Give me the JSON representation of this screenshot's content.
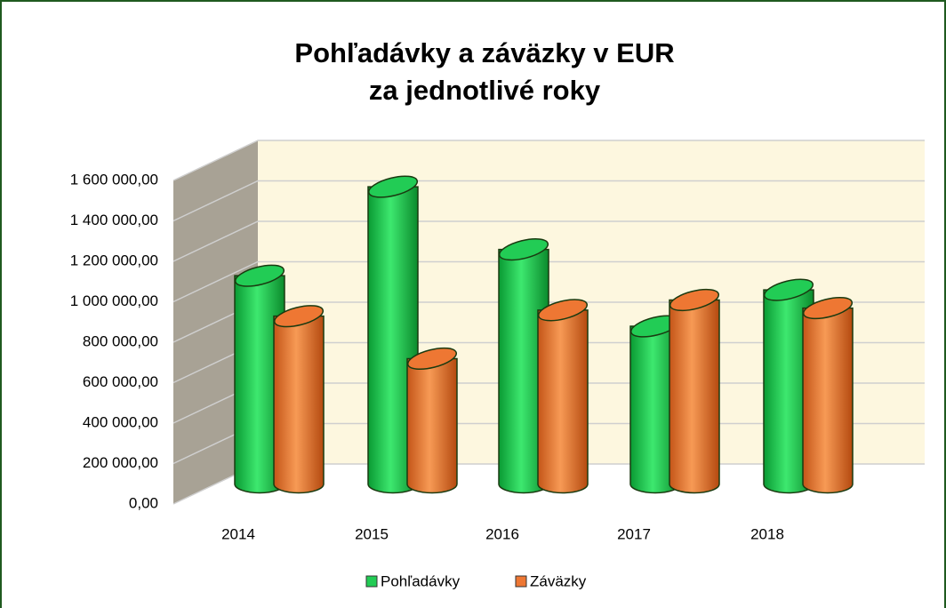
{
  "chart_data": {
    "type": "bar3d",
    "title": [
      "Pohľadávky a záväzky v EUR",
      "za jednotlivé roky"
    ],
    "categories": [
      "2014",
      "2015",
      "2016",
      "2017",
      "2018"
    ],
    "series": [
      {
        "name": "Pohľadávky",
        "color": "#22cc55",
        "values": [
          1030000,
          1470000,
          1160000,
          780000,
          960000
        ]
      },
      {
        "name": "Záväzky",
        "color": "#ee7733",
        "values": [
          830000,
          620000,
          860000,
          910000,
          870000
        ]
      }
    ],
    "ylim": [
      0,
      1600000
    ],
    "yticks": [
      {
        "value": 0,
        "label": "0,00"
      },
      {
        "value": 200000,
        "label": "200 000,00"
      },
      {
        "value": 400000,
        "label": "400 000,00"
      },
      {
        "value": 600000,
        "label": "600 000,00"
      },
      {
        "value": 800000,
        "label": "800 000,00"
      },
      {
        "value": 1000000,
        "label": "1 000 000,00"
      },
      {
        "value": 1200000,
        "label": "1 200 000,00"
      },
      {
        "value": 1400000,
        "label": "1 400 000,00"
      },
      {
        "value": 1600000,
        "label": "1 600 000,00"
      }
    ],
    "grid": true,
    "legend": "bottom"
  }
}
